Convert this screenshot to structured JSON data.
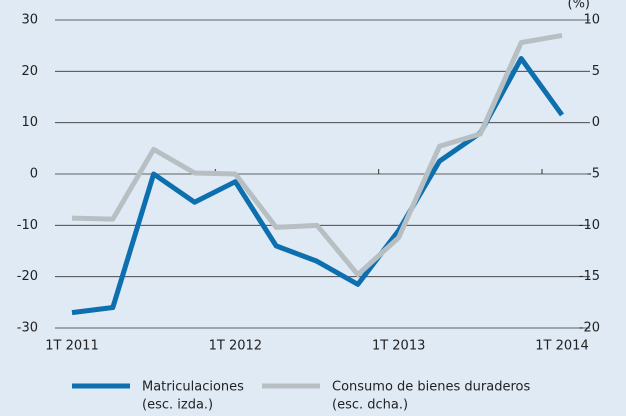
{
  "chart_data": {
    "type": "line",
    "unit_label": "(%)",
    "categories": [
      "1T 2011",
      null,
      null,
      null,
      "1T 2012",
      null,
      null,
      null,
      "1T 2013",
      null,
      null,
      null,
      "1T 2014"
    ],
    "series": [
      {
        "name": "Matriculaciones",
        "note": "(esc. izda.)",
        "color": "#0d6fae",
        "axis": "y",
        "values": [
          -27,
          -26,
          0,
          -5.5,
          -1.5,
          -14,
          -17,
          -21.5,
          -11,
          2.5,
          8,
          22.5,
          11.5
        ]
      },
      {
        "name": "Consumo de bienes duraderos",
        "note": "(esc. dcha.)",
        "color": "#b7bfc3",
        "axis": "y2",
        "values": [
          -9.3,
          -9.4,
          -2.6,
          -4.9,
          -5,
          -10.2,
          -10,
          -14.8,
          -11.2,
          -2.3,
          -1.1,
          7.8,
          8.5
        ]
      }
    ],
    "ylim": [
      -30,
      30
    ],
    "yticks": [
      -30,
      -20,
      -10,
      0,
      10,
      20,
      30
    ],
    "y2lim": [
      -20,
      10
    ],
    "y2ticks": [
      -20,
      -15,
      -10,
      -5,
      0,
      5,
      10
    ],
    "grid": true
  }
}
